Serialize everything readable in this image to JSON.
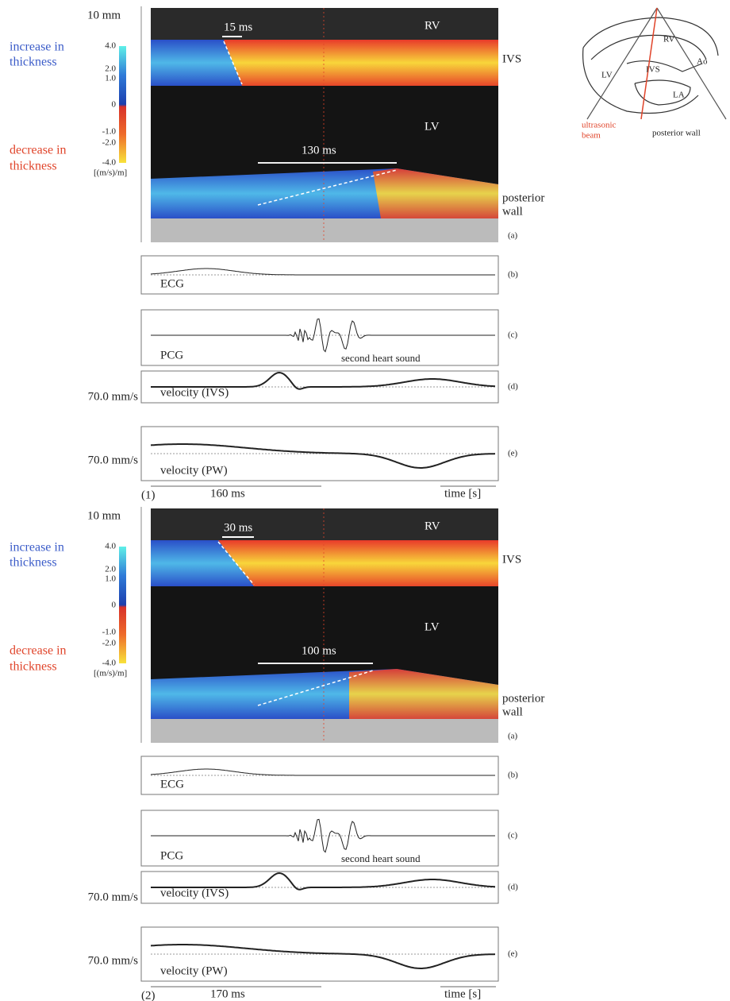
{
  "schematic": {
    "rv": "RV",
    "ao": "Ao",
    "lv": "LV",
    "ivs": "IVS",
    "la": "LA",
    "beam": [
      "ultrasonic",
      "beam"
    ],
    "posterior_wall": "posterior wall"
  },
  "panels": [
    {
      "label": "(1)",
      "scale": "10 mm",
      "increase": [
        "increase in",
        "thickness"
      ],
      "decrease": [
        "decrease in",
        "thickness"
      ],
      "colorbar": [
        "4.0",
        "2.0",
        "1.0",
        "0",
        "-1.0",
        "-2.0",
        "-4.0"
      ],
      "unit": "[(m/s)/m]",
      "regions": {
        "rv": "RV",
        "ivs": "IVS",
        "lv": "LV",
        "pw": [
          "posterior",
          "wall"
        ]
      },
      "ivs_delay": "15 ms",
      "pw_delay": "130 ms",
      "letters": [
        "(a)",
        "(b)",
        "(c)",
        "(d)",
        "(e)"
      ],
      "ecg": "ECG",
      "pcg": "PCG",
      "sound": "second heart sound",
      "vel_ivs": "velocity (IVS)",
      "vel_pw": "velocity (PW)",
      "vel_scale": [
        "70.0 mm/s",
        "70.0 mm/s"
      ],
      "time_scale": "160 ms",
      "time_axis": "time [s]"
    },
    {
      "label": "(2)",
      "scale": "10 mm",
      "increase": [
        "increase in",
        "thickness"
      ],
      "decrease": [
        "decrease in",
        "thickness"
      ],
      "colorbar": [
        "4.0",
        "2.0",
        "1.0",
        "0",
        "-1.0",
        "-2.0",
        "-4.0"
      ],
      "unit": "[(m/s)/m]",
      "regions": {
        "rv": "RV",
        "ivs": "IVS",
        "lv": "LV",
        "pw": [
          "posterior",
          "wall"
        ]
      },
      "ivs_delay": "30 ms",
      "pw_delay": "100 ms",
      "letters": [
        "(a)",
        "(b)",
        "(c)",
        "(d)",
        "(e)"
      ],
      "ecg": "ECG",
      "pcg": "PCG",
      "sound": "second heart sound",
      "vel_ivs": "velocity (IVS)",
      "vel_pw": "velocity (PW)",
      "vel_scale": [
        "70.0 mm/s",
        "70.0 mm/s"
      ],
      "time_scale": "170 ms",
      "time_axis": "time [s]"
    }
  ]
}
